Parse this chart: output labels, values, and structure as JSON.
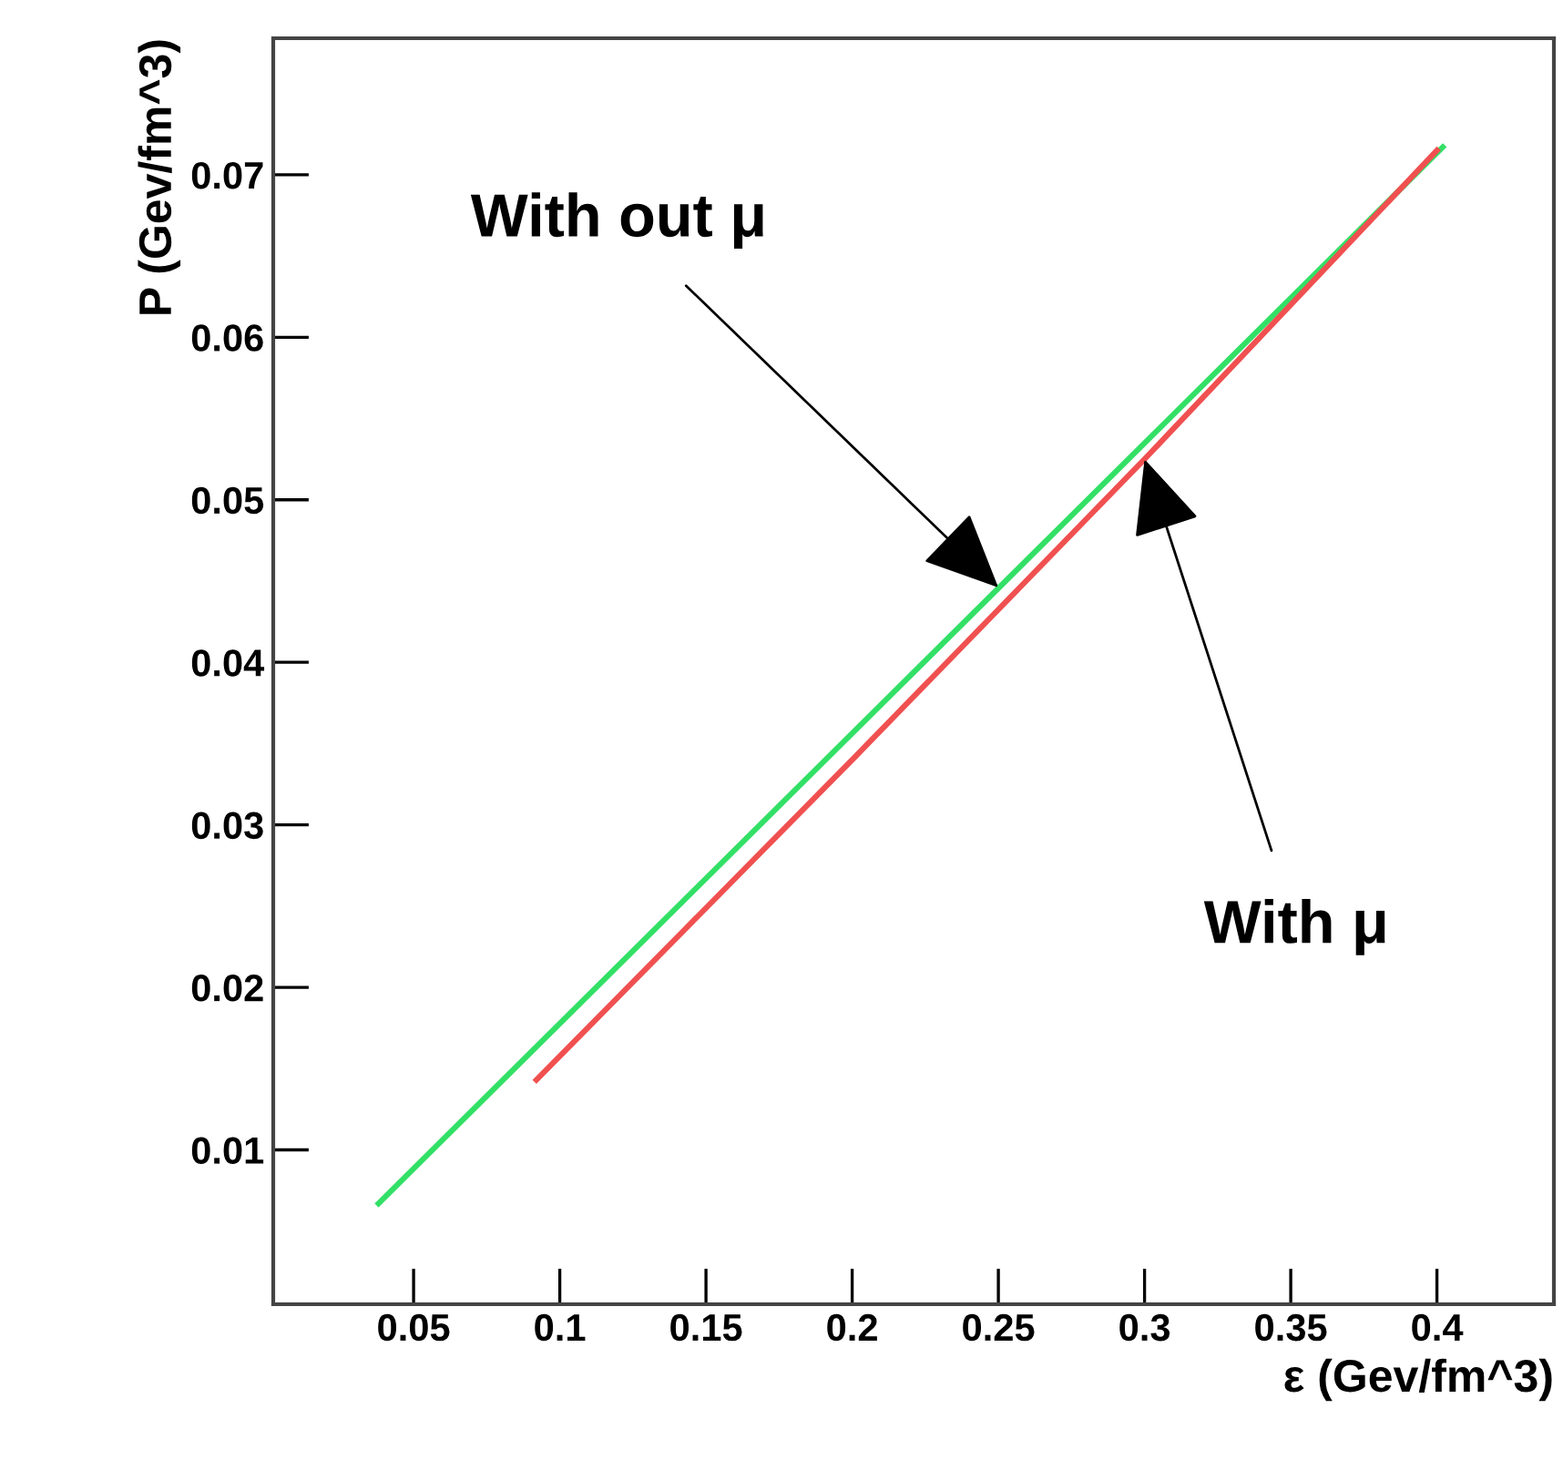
{
  "chart_data": {
    "type": "line",
    "xlabel": "ε (Gev/fm^3)",
    "ylabel": "P (Gev/fm^3)",
    "xlim": [
      0.002,
      0.44
    ],
    "ylim": [
      0.0005,
      0.0784
    ],
    "xticks": [
      0.05,
      0.1,
      0.15,
      0.2,
      0.25,
      0.3,
      0.35,
      0.4
    ],
    "yticks": [
      0.01,
      0.02,
      0.03,
      0.04,
      0.05,
      0.06,
      0.07
    ],
    "grid": false,
    "legend": false,
    "marker": "none",
    "line_style": "solid",
    "series": [
      {
        "color": "#33e066",
        "x": [
          0.038,
          0.402
        ],
        "values": [
          0.0067,
          0.0717
        ]
      },
      {
        "color": "#f05050",
        "x": [
          0.092,
          0.2,
          0.3,
          0.4
        ],
        "values": [
          0.0143,
          0.034,
          0.0525,
          0.0715
        ]
      }
    ],
    "annotations": [
      {
        "text": "With out μ",
        "x": 0.25,
        "y": 0.0446
      },
      {
        "text": "With μ",
        "x": 0.3,
        "y": 0.0525
      }
    ]
  }
}
